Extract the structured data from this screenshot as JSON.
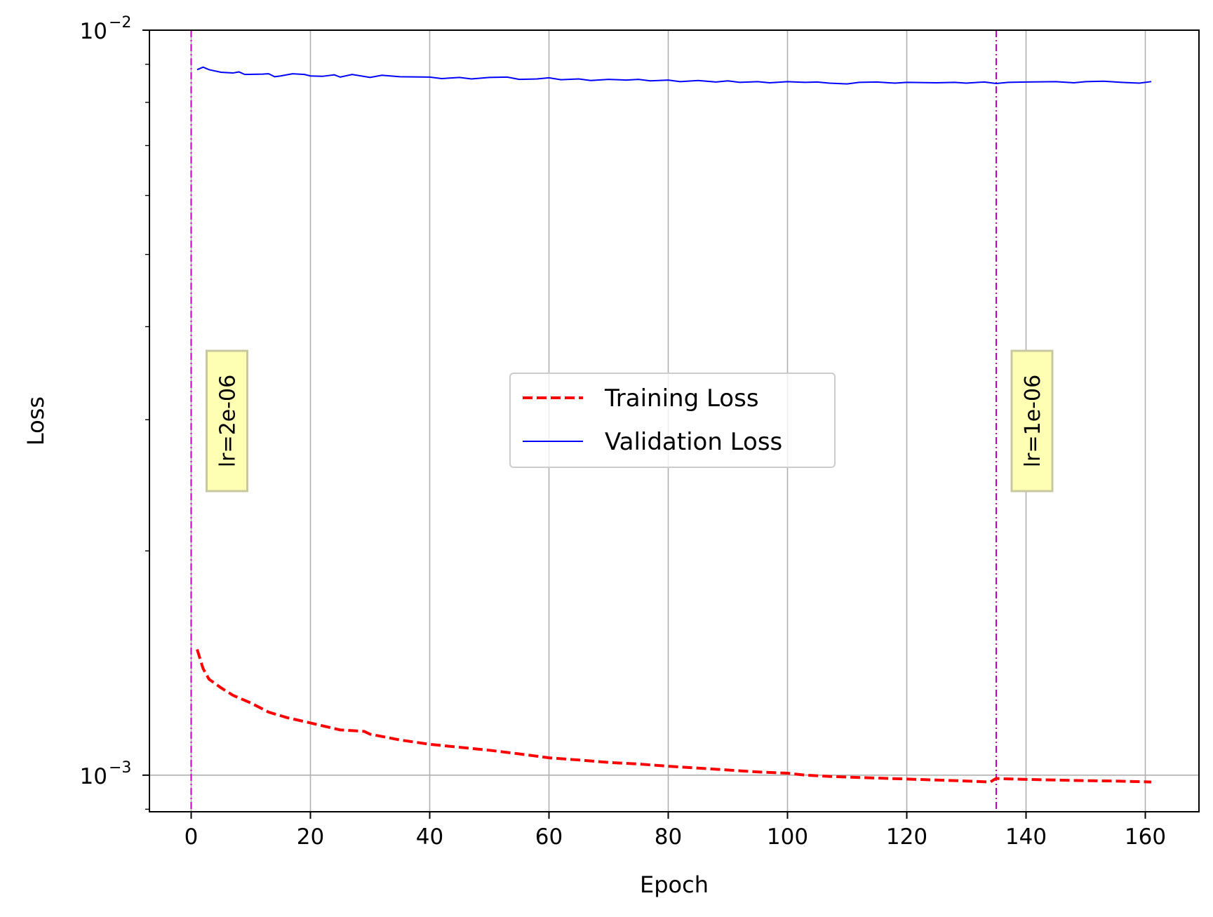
{
  "chart_data": {
    "type": "line",
    "xlabel": "Epoch",
    "ylabel": "Loss",
    "xlim": [
      -7,
      169
    ],
    "ylim": [
      0.000893,
      0.01
    ],
    "y_scale": "log",
    "x_ticks": [
      0,
      20,
      40,
      60,
      80,
      100,
      120,
      140,
      160
    ],
    "x_tick_labels": [
      "0",
      "20",
      "40",
      "60",
      "80",
      "100",
      "120",
      "140",
      "160"
    ],
    "y_major_ticks": [
      {
        "value": 0.01,
        "base": "10",
        "exp": "−2"
      },
      {
        "value": 0.001,
        "base": "10",
        "exp": "−3"
      }
    ],
    "y_minor_ticks": [
      0.002,
      0.003,
      0.004,
      0.005,
      0.006,
      0.007,
      0.008,
      0.009
    ],
    "grid": true,
    "legend_position": "center",
    "series": [
      {
        "name": "Training Loss",
        "color": "#ff0000",
        "style": "dashed",
        "points": [
          [
            1,
            0.001475
          ],
          [
            2,
            0.00139
          ],
          [
            3,
            0.001345
          ],
          [
            5,
            0.00131
          ],
          [
            7,
            0.00128
          ],
          [
            10,
            0.00125
          ],
          [
            13,
            0.001215
          ],
          [
            16,
            0.001195
          ],
          [
            20,
            0.001175
          ],
          [
            25,
            0.00115
          ],
          [
            29,
            0.001145
          ],
          [
            30,
            0.001135
          ],
          [
            35,
            0.001115
          ],
          [
            40,
            0.0011
          ],
          [
            45,
            0.00109
          ],
          [
            50,
            0.00108
          ],
          [
            55,
            0.001068
          ],
          [
            60,
            0.001055
          ],
          [
            65,
            0.001048
          ],
          [
            70,
            0.00104
          ],
          [
            75,
            0.001035
          ],
          [
            80,
            0.001028
          ],
          [
            85,
            0.001022
          ],
          [
            90,
            0.001016
          ],
          [
            95,
            0.00101
          ],
          [
            100,
            0.001006
          ],
          [
            103,
            0.001
          ],
          [
            107,
            0.000996
          ],
          [
            110,
            0.000994
          ],
          [
            115,
            0.000991
          ],
          [
            120,
            0.000988
          ],
          [
            125,
            0.000985
          ],
          [
            130,
            0.000982
          ],
          [
            134,
            0.000979
          ],
          [
            135,
            0.00099
          ],
          [
            136,
            0.000989
          ],
          [
            140,
            0.000987
          ],
          [
            145,
            0.000985
          ],
          [
            150,
            0.000983
          ],
          [
            155,
            0.000982
          ],
          [
            161,
            0.000979
          ]
        ]
      },
      {
        "name": "Validation Loss",
        "color": "#0000ff",
        "style": "solid",
        "points": [
          [
            1,
            0.00885
          ],
          [
            2,
            0.00892
          ],
          [
            3,
            0.00885
          ],
          [
            5,
            0.00878
          ],
          [
            7,
            0.00876
          ],
          [
            8,
            0.00879
          ],
          [
            9,
            0.00872
          ],
          [
            12,
            0.00873
          ],
          [
            13,
            0.00874
          ],
          [
            14,
            0.00866
          ],
          [
            15,
            0.00868
          ],
          [
            17,
            0.00874
          ],
          [
            19,
            0.00872
          ],
          [
            20,
            0.00868
          ],
          [
            22,
            0.00867
          ],
          [
            24,
            0.00871
          ],
          [
            25,
            0.00865
          ],
          [
            27,
            0.00872
          ],
          [
            30,
            0.00864
          ],
          [
            32,
            0.0087
          ],
          [
            35,
            0.00866
          ],
          [
            40,
            0.00865
          ],
          [
            42,
            0.00861
          ],
          [
            45,
            0.00864
          ],
          [
            47,
            0.0086
          ],
          [
            50,
            0.00864
          ],
          [
            53,
            0.00865
          ],
          [
            55,
            0.00859
          ],
          [
            58,
            0.0086
          ],
          [
            60,
            0.00863
          ],
          [
            62,
            0.00858
          ],
          [
            65,
            0.0086
          ],
          [
            67,
            0.00856
          ],
          [
            70,
            0.00859
          ],
          [
            73,
            0.00857
          ],
          [
            75,
            0.00859
          ],
          [
            77,
            0.00855
          ],
          [
            80,
            0.00857
          ],
          [
            82,
            0.00853
          ],
          [
            85,
            0.00856
          ],
          [
            88,
            0.00852
          ],
          [
            90,
            0.00855
          ],
          [
            92,
            0.00851
          ],
          [
            95,
            0.00853
          ],
          [
            97,
            0.0085
          ],
          [
            100,
            0.00853
          ],
          [
            103,
            0.00851
          ],
          [
            105,
            0.00852
          ],
          [
            107,
            0.00849
          ],
          [
            110,
            0.00847
          ],
          [
            112,
            0.00851
          ],
          [
            115,
            0.00852
          ],
          [
            118,
            0.00849
          ],
          [
            120,
            0.00851
          ],
          [
            125,
            0.0085
          ],
          [
            128,
            0.00851
          ],
          [
            130,
            0.00849
          ],
          [
            133,
            0.00852
          ],
          [
            135,
            0.00848
          ],
          [
            137,
            0.00851
          ],
          [
            140,
            0.00852
          ],
          [
            145,
            0.00853
          ],
          [
            148,
            0.0085
          ],
          [
            150,
            0.00853
          ],
          [
            153,
            0.00854
          ],
          [
            156,
            0.00851
          ],
          [
            159,
            0.00849
          ],
          [
            161,
            0.00853
          ]
        ]
      }
    ],
    "annotations": [
      {
        "x": 0,
        "text": "lr=2e-06",
        "color": "#bf00bf"
      },
      {
        "x": 135,
        "text": "lr=1e-06",
        "color": "#bf00bf"
      }
    ]
  }
}
